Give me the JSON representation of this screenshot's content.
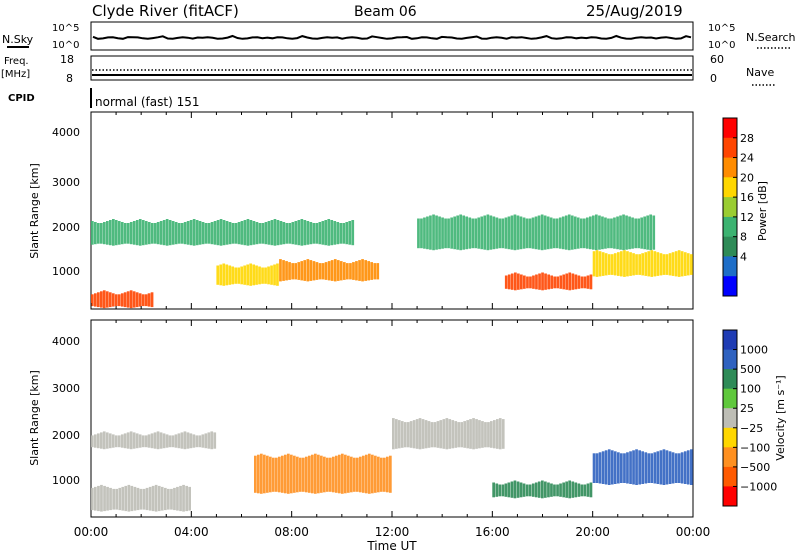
{
  "header": {
    "title_left": "Clyde River (fitACF)",
    "title_center": "Beam 06",
    "title_right": "25/Aug/2019"
  },
  "nsky_panel": {
    "left_label": "N.Sky",
    "right_label": "N.Search",
    "y_ticks_left": [
      "10^5",
      "10^0"
    ],
    "y_ticks_right": [
      "10^5",
      "10^0"
    ]
  },
  "freq_panel": {
    "left_label_line1": "Freq.",
    "left_label_line2": "[MHz]",
    "right_label": "Nave",
    "y_ticks_left": [
      "18",
      "8"
    ],
    "y_ticks_right": [
      "60",
      "0"
    ]
  },
  "cpid": {
    "label": "CPID",
    "value": "normal (fast) 151"
  },
  "power_panel": {
    "ylabel": "Slant Range [km]",
    "y_ticks": [
      "4000",
      "3000",
      "2000",
      "1000"
    ],
    "colorbar_label": "Power [dB]",
    "colorbar_ticks": [
      "28",
      "24",
      "20",
      "16",
      "12",
      "8",
      "4"
    ],
    "colorbar_colors": [
      "#ff0000",
      "#ff4500",
      "#ff8c00",
      "#ffd700",
      "#9acd32",
      "#3cb371",
      "#2e8b57",
      "#1e6ec8",
      "#0000ff"
    ]
  },
  "velocity_panel": {
    "ylabel": "Slant Range [km]",
    "y_ticks": [
      "4000",
      "3000",
      "2000",
      "1000"
    ],
    "colorbar_label": "Velocity [m s⁻¹]",
    "colorbar_ticks": [
      "1000",
      "500",
      "100",
      "25",
      "−25",
      "−100",
      "−500",
      "−1000"
    ],
    "colorbar_colors": [
      "#1f3cb4",
      "#2f62c0",
      "#2e8b57",
      "#5fc83c",
      "#bdbdb5",
      "#ffd700",
      "#ff9020",
      "#ff5a00",
      "#ff0000"
    ]
  },
  "xaxis": {
    "label": "Time UT",
    "ticks": [
      "00:00",
      "04:00",
      "08:00",
      "12:00",
      "16:00",
      "20:00",
      "00:00"
    ]
  },
  "chart_data": [
    {
      "type": "heatmap",
      "title": "Power [dB]",
      "xlabel": "Time UT",
      "ylabel": "Slant Range [km]",
      "xlim": [
        "00:00",
        "24:00"
      ],
      "ylim": [
        180,
        4600
      ],
      "zlim": [
        0,
        32
      ],
      "features": [
        {
          "t_start": 0.0,
          "t_end": 2.5,
          "range_start": 200,
          "range_end": 600,
          "value": 29
        },
        {
          "t_start": 5.0,
          "t_end": 7.5,
          "range_start": 700,
          "range_end": 1200,
          "value": 22
        },
        {
          "t_start": 7.5,
          "t_end": 11.5,
          "range_start": 800,
          "range_end": 1300,
          "value": 25
        },
        {
          "t_start": 0.0,
          "t_end": 10.5,
          "range_start": 1600,
          "range_end": 2200,
          "value": 12
        },
        {
          "t_start": 13.0,
          "t_end": 22.5,
          "range_start": 1500,
          "range_end": 2300,
          "value": 12
        },
        {
          "t_start": 16.5,
          "t_end": 20.0,
          "range_start": 600,
          "range_end": 1000,
          "value": 28
        },
        {
          "t_start": 20.0,
          "t_end": 24.0,
          "range_start": 900,
          "range_end": 1500,
          "value": 20
        }
      ]
    },
    {
      "type": "heatmap",
      "title": "Velocity [m s-1]",
      "xlabel": "Time UT",
      "ylabel": "Slant Range [km]",
      "xlim": [
        "00:00",
        "24:00"
      ],
      "ylim": [
        180,
        4600
      ],
      "zlim": [
        -1000,
        1000
      ],
      "features": [
        {
          "t_start": 0.0,
          "t_end": 5.0,
          "range_start": 1700,
          "range_end": 2100,
          "value": 0
        },
        {
          "t_start": 6.5,
          "t_end": 12.0,
          "range_start": 700,
          "range_end": 1600,
          "value": -300
        },
        {
          "t_start": 12.0,
          "t_end": 16.5,
          "range_start": 1700,
          "range_end": 2400,
          "value": 0
        },
        {
          "t_start": 16.0,
          "t_end": 20.0,
          "range_start": 600,
          "range_end": 1000,
          "value": 100
        },
        {
          "t_start": 20.0,
          "t_end": 24.0,
          "range_start": 900,
          "range_end": 1700,
          "value": 800
        },
        {
          "t_start": 0.0,
          "t_end": 4.0,
          "range_start": 300,
          "range_end": 900,
          "value": 0
        }
      ]
    }
  ]
}
